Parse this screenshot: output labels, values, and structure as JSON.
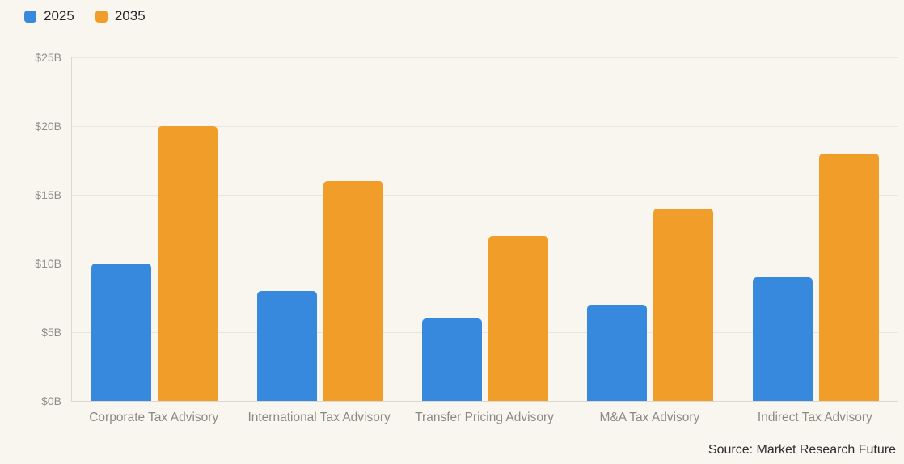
{
  "page": {
    "background_color": "#f9f6f0"
  },
  "source": {
    "text": "Source: Market Research Future"
  },
  "chart_data": {
    "type": "bar",
    "title": "",
    "xlabel": "",
    "ylabel": "",
    "categories": [
      "Corporate Tax Advisory",
      "International Tax Advisory",
      "Transfer Pricing Advisory",
      "M&A Tax Advisory",
      "Indirect Tax Advisory"
    ],
    "series": [
      {
        "name": "2025",
        "color": "#3789dd",
        "values": [
          10,
          8,
          6,
          7,
          9
        ]
      },
      {
        "name": "2035",
        "color": "#f09e29",
        "values": [
          20,
          16,
          12,
          14,
          18
        ]
      }
    ],
    "ylim": [
      0,
      25
    ],
    "yticks": [
      0,
      5,
      10,
      15,
      20,
      25
    ],
    "ytick_labels": [
      "$0B",
      "$5B",
      "$10B",
      "$15B",
      "$20B",
      "$25B"
    ],
    "grid": true,
    "legend_position": "top-left",
    "colors": {
      "gridline": "#eae6df",
      "axis": "#dcd8d0",
      "tick_text": "#8f8d87",
      "category_text": "#8b8984"
    }
  }
}
